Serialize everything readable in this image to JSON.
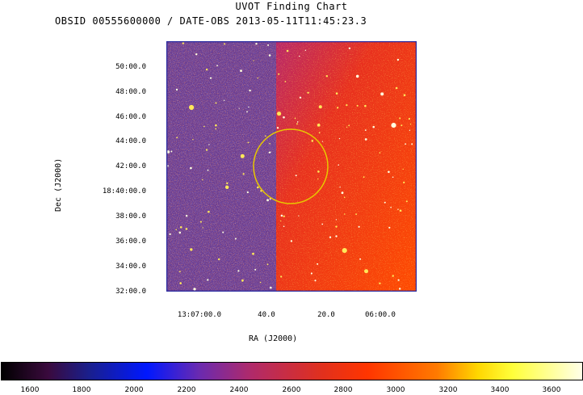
{
  "chart_title": "UVOT Finding Chart",
  "subtitle": "OBSID 00555600000 / DATE-OBS 2013-05-11T11:45:23.3",
  "axes": {
    "x_label": "RA (J2000)",
    "y_label": "Dec (J2000)",
    "x_ticks": [
      "13:07:00.0",
      "40.0",
      "20.0",
      "06:00.0"
    ],
    "y_ticks": [
      "50:00.0",
      "48:00.0",
      "46:00.0",
      "44:00.0",
      "42:00.0",
      "18:40:00.0",
      "38:00.0",
      "36:00.0",
      "34:00.0",
      "32:00.0"
    ]
  },
  "colorbar": {
    "labels": [
      "1600",
      "1800",
      "2000",
      "2200",
      "2400",
      "2600",
      "2800",
      "3000",
      "3200",
      "3400",
      "3600"
    ]
  },
  "colors": {
    "frame": "#2a2aa0",
    "circle": "#e8c800",
    "left_bg": "#5a3a8a",
    "right_bg": "#e83a1a"
  }
}
